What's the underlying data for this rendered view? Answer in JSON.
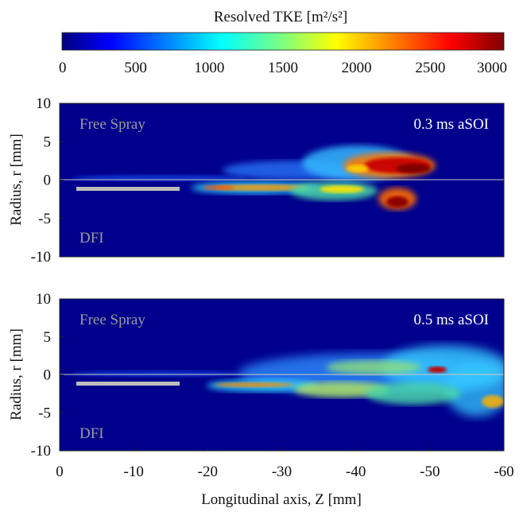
{
  "colorbar": {
    "title": "Resolved TKE [m²/s²]",
    "ticks": [
      "0",
      "500",
      "1000",
      "1500",
      "2000",
      "2500",
      "3000"
    ],
    "range": [
      0,
      3000
    ],
    "colormap": "jet"
  },
  "chart_data": [
    {
      "type": "heatmap",
      "time_label": "0.3 ms aSOI",
      "upper_label": "Free Spray",
      "lower_label": "DFI",
      "ylabel": "Radius, r [mm]",
      "xlabel": "",
      "xlim": [
        0,
        -60
      ],
      "ylim": [
        -10,
        10
      ],
      "yticks": [
        "10",
        "5",
        "0",
        "-5",
        "-10"
      ],
      "xticks": [],
      "description_values": {
        "spray_tip_z_mm": -52,
        "dfi_duct_z_mm": [
          -2,
          -16
        ],
        "dfi_duct_r_mm": -1.3
      }
    },
    {
      "type": "heatmap",
      "time_label": "0.5 ms aSOI",
      "upper_label": "Free Spray",
      "lower_label": "DFI",
      "ylabel": "Radius, r [mm]",
      "xlabel": "Longitudinal axis, Z [mm]",
      "xlim": [
        0,
        -60
      ],
      "ylim": [
        -10,
        10
      ],
      "yticks": [
        "10",
        "5",
        "0",
        "-5",
        "-10"
      ],
      "xticks": [
        "0",
        "-10",
        "-20",
        "-30",
        "-40",
        "-50",
        "-60"
      ],
      "description_values": {
        "spray_tip_z_mm": -60,
        "dfi_duct_z_mm": [
          -2,
          -16
        ],
        "dfi_duct_r_mm": -1.3
      }
    }
  ]
}
